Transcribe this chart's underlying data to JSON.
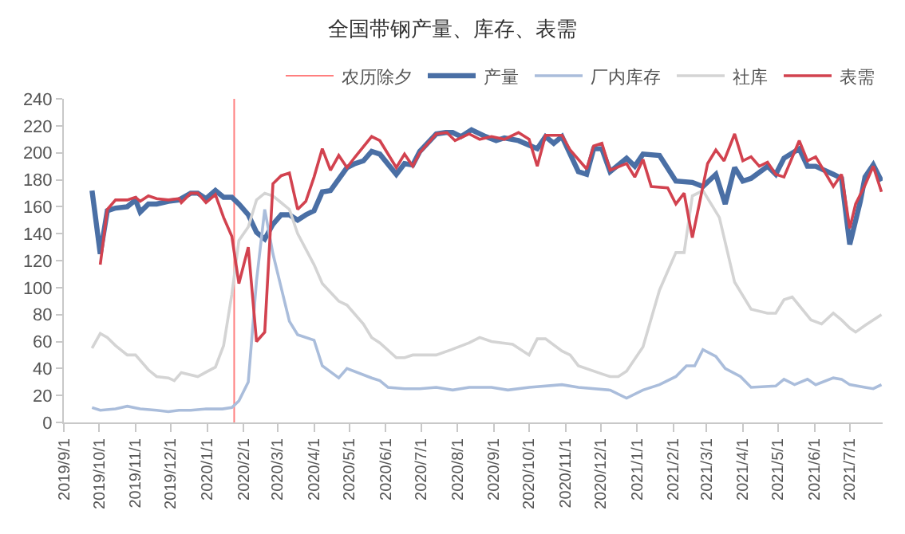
{
  "chart_data": {
    "type": "line",
    "title": "全国带钢产量、库存、表需",
    "xlim": [
      "2019-09-01",
      "2021-07-29"
    ],
    "xticks": [
      {
        "value": "2019-09-01",
        "label": "2019/9/1"
      },
      {
        "value": "2019-10-01",
        "label": "2019/10/1"
      },
      {
        "value": "2019-11-01",
        "label": "2019/11/1"
      },
      {
        "value": "2019-12-01",
        "label": "2019/12/1"
      },
      {
        "value": "2020-01-01",
        "label": "2020/1/1"
      },
      {
        "value": "2020-02-01",
        "label": "2020/2/1"
      },
      {
        "value": "2020-03-01",
        "label": "2020/3/1"
      },
      {
        "value": "2020-04-01",
        "label": "2020/4/1"
      },
      {
        "value": "2020-05-01",
        "label": "2020/5/1"
      },
      {
        "value": "2020-06-01",
        "label": "2020/6/1"
      },
      {
        "value": "2020-07-01",
        "label": "2020/7/1"
      },
      {
        "value": "2020-08-01",
        "label": "2020/8/1"
      },
      {
        "value": "2020-09-01",
        "label": "2020/9/1"
      },
      {
        "value": "2020-10-01",
        "label": "2020/10/1"
      },
      {
        "value": "2020-11-01",
        "label": "2020/11/1"
      },
      {
        "value": "2020-12-01",
        "label": "2020/12/1"
      },
      {
        "value": "2021-01-01",
        "label": "2021/1/1"
      },
      {
        "value": "2021-02-01",
        "label": "2021/2/1"
      },
      {
        "value": "2021-03-01",
        "label": "2021/3/1"
      },
      {
        "value": "2021-04-01",
        "label": "2021/4/1"
      },
      {
        "value": "2021-05-01",
        "label": "2021/5/1"
      },
      {
        "value": "2021-06-01",
        "label": "2021/6/1"
      },
      {
        "value": "2021-07-01",
        "label": "2021/7/1"
      }
    ],
    "ylim": [
      0,
      240
    ],
    "yticks": [
      0,
      20,
      40,
      60,
      80,
      100,
      120,
      140,
      160,
      180,
      200,
      220,
      240
    ],
    "grid": false,
    "legend": "top",
    "marker": "none",
    "line_style": "solid",
    "ref_lines": [
      {
        "axis": "x",
        "value": "2020-01-24",
        "label": "农历除夕",
        "color": "#ff7f7f"
      }
    ],
    "series": [
      {
        "name": "产量",
        "color": "#4a6fa5",
        "x": [
          "2019-09-25",
          "2019-10-02",
          "2019-10-08",
          "2019-10-15",
          "2019-10-25",
          "2019-11-01",
          "2019-11-05",
          "2019-11-12",
          "2019-11-19",
          "2019-11-29",
          "2019-12-08",
          "2019-12-18",
          "2019-12-24",
          "2019-12-31",
          "2020-01-08",
          "2020-01-15",
          "2020-01-22",
          "2020-01-28",
          "2020-02-05",
          "2020-02-12",
          "2020-02-19",
          "2020-02-26",
          "2020-03-04",
          "2020-03-11",
          "2020-03-18",
          "2020-03-25",
          "2020-04-01",
          "2020-04-08",
          "2020-04-15",
          "2020-04-29",
          "2020-05-06",
          "2020-05-13",
          "2020-05-20",
          "2020-05-27",
          "2020-06-10",
          "2020-06-17",
          "2020-06-24",
          "2020-06-30",
          "2020-07-14",
          "2020-07-22",
          "2020-07-28",
          "2020-08-04",
          "2020-08-13",
          "2020-08-25",
          "2020-09-03",
          "2020-09-10",
          "2020-09-22",
          "2020-10-08",
          "2020-10-15",
          "2020-10-22",
          "2020-10-29",
          "2020-11-12",
          "2020-11-19",
          "2020-11-25",
          "2020-12-02",
          "2020-12-09",
          "2020-12-23",
          "2020-12-30",
          "2021-01-06",
          "2021-01-20",
          "2021-02-03",
          "2021-02-17",
          "2021-02-26",
          "2021-03-09",
          "2021-03-17",
          "2021-03-25",
          "2021-04-01",
          "2021-04-08",
          "2021-04-22",
          "2021-04-29",
          "2021-05-06",
          "2021-05-19",
          "2021-05-26",
          "2021-06-02",
          "2021-06-17",
          "2021-06-24",
          "2021-07-01",
          "2021-07-10",
          "2021-07-14",
          "2021-07-21",
          "2021-07-28"
        ],
        "values": [
          172,
          125,
          157,
          159,
          160,
          165,
          156,
          162,
          162,
          164,
          165,
          170,
          170,
          166,
          172,
          167,
          167,
          162,
          154,
          141,
          136,
          147,
          154,
          154,
          150,
          154,
          157,
          171,
          172,
          189,
          192,
          194,
          201,
          199,
          184,
          192,
          191,
          201,
          214,
          215,
          215,
          212,
          217,
          212,
          209,
          211,
          209,
          203,
          212,
          207,
          212,
          186,
          184,
          203,
          203,
          186,
          196,
          190,
          199,
          198,
          179,
          178,
          175,
          184,
          162,
          189,
          179,
          181,
          190,
          184,
          196,
          203,
          190,
          190,
          184,
          181,
          132,
          164,
          182,
          191,
          179
        ]
      },
      {
        "name": "厂内库存",
        "color": "#aabddb",
        "x": [
          "2019-09-25",
          "2019-10-02",
          "2019-10-15",
          "2019-10-25",
          "2019-11-05",
          "2019-11-19",
          "2019-11-29",
          "2019-12-08",
          "2019-12-18",
          "2019-12-31",
          "2020-01-14",
          "2020-01-22",
          "2020-01-28",
          "2020-02-05",
          "2020-02-12",
          "2020-02-19",
          "2020-02-26",
          "2020-03-04",
          "2020-03-11",
          "2020-03-18",
          "2020-04-01",
          "2020-04-08",
          "2020-04-22",
          "2020-04-29",
          "2020-05-20",
          "2020-05-27",
          "2020-06-03",
          "2020-06-17",
          "2020-06-30",
          "2020-07-14",
          "2020-07-28",
          "2020-08-11",
          "2020-08-30",
          "2020-09-13",
          "2020-10-01",
          "2020-10-29",
          "2020-11-12",
          "2020-12-09",
          "2020-12-23",
          "2021-01-06",
          "2021-01-20",
          "2021-02-03",
          "2021-02-12",
          "2021-02-19",
          "2021-02-26",
          "2021-03-09",
          "2021-03-17",
          "2021-03-30",
          "2021-04-08",
          "2021-04-29",
          "2021-05-06",
          "2021-05-15",
          "2021-05-26",
          "2021-06-02",
          "2021-06-17",
          "2021-06-24",
          "2021-07-01",
          "2021-07-14",
          "2021-07-21",
          "2021-07-28"
        ],
        "values": [
          11,
          9,
          10,
          12,
          10,
          9,
          8,
          9,
          9,
          10,
          10,
          11,
          16,
          30,
          105,
          158,
          125,
          100,
          75,
          65,
          61,
          42,
          33,
          40,
          33,
          31,
          26,
          25,
          25,
          26,
          24,
          26,
          26,
          24,
          26,
          28,
          26,
          24,
          18,
          24,
          28,
          34,
          42,
          42,
          54,
          49,
          40,
          34,
          26,
          27,
          32,
          28,
          32,
          28,
          33,
          32,
          28,
          26,
          25,
          28
        ]
      },
      {
        "name": "社库",
        "color": "#d4d4d4",
        "x": [
          "2019-09-25",
          "2019-10-02",
          "2019-10-08",
          "2019-10-15",
          "2019-10-25",
          "2019-11-01",
          "2019-11-12",
          "2019-11-19",
          "2019-11-29",
          "2019-12-04",
          "2019-12-10",
          "2019-12-24",
          "2020-01-08",
          "2020-01-15",
          "2020-01-22",
          "2020-01-28",
          "2020-02-05",
          "2020-02-12",
          "2020-02-19",
          "2020-02-26",
          "2020-03-04",
          "2020-03-11",
          "2020-03-18",
          "2020-04-01",
          "2020-04-08",
          "2020-04-22",
          "2020-04-29",
          "2020-05-13",
          "2020-05-20",
          "2020-05-27",
          "2020-06-10",
          "2020-06-17",
          "2020-06-24",
          "2020-07-14",
          "2020-07-27",
          "2020-08-11",
          "2020-08-20",
          "2020-08-30",
          "2020-09-17",
          "2020-10-01",
          "2020-10-08",
          "2020-10-15",
          "2020-10-29",
          "2020-11-05",
          "2020-11-12",
          "2020-12-02",
          "2020-12-09",
          "2020-12-16",
          "2020-12-23",
          "2021-01-06",
          "2021-01-20",
          "2021-02-03",
          "2021-02-10",
          "2021-02-17",
          "2021-02-26",
          "2021-03-12",
          "2021-03-25",
          "2021-04-08",
          "2021-04-22",
          "2021-04-29",
          "2021-05-06",
          "2021-05-13",
          "2021-05-29",
          "2021-06-07",
          "2021-06-17",
          "2021-06-24",
          "2021-07-01",
          "2021-07-06",
          "2021-07-14",
          "2021-07-28"
        ],
        "values": [
          55,
          66,
          63,
          57,
          50,
          50,
          39,
          34,
          33,
          31,
          37,
          34,
          41,
          57,
          95,
          135,
          145,
          165,
          170,
          168,
          163,
          158,
          140,
          117,
          103,
          90,
          87,
          73,
          63,
          59,
          48,
          48,
          50,
          50,
          54,
          59,
          63,
          60,
          58,
          50,
          62,
          62,
          53,
          50,
          42,
          36,
          34,
          34,
          38,
          56,
          98,
          126,
          126,
          168,
          172,
          152,
          104,
          84,
          81,
          81,
          91,
          93,
          76,
          73,
          81,
          76,
          70,
          67,
          72,
          80
        ]
      },
      {
        "name": "表需",
        "color": "#d2424f",
        "x": [
          "2019-10-02",
          "2019-10-08",
          "2019-10-15",
          "2019-10-25",
          "2019-11-01",
          "2019-11-05",
          "2019-11-12",
          "2019-11-19",
          "2019-11-29",
          "2019-12-08",
          "2019-12-10",
          "2019-12-18",
          "2019-12-24",
          "2019-12-31",
          "2020-01-08",
          "2020-01-15",
          "2020-01-22",
          "2020-01-28",
          "2020-02-05",
          "2020-02-12",
          "2020-02-19",
          "2020-02-26",
          "2020-03-04",
          "2020-03-11",
          "2020-03-18",
          "2020-03-25",
          "2020-04-01",
          "2020-04-08",
          "2020-04-15",
          "2020-04-22",
          "2020-04-29",
          "2020-05-06",
          "2020-05-20",
          "2020-05-27",
          "2020-06-10",
          "2020-06-17",
          "2020-06-24",
          "2020-06-30",
          "2020-07-14",
          "2020-07-23",
          "2020-07-30",
          "2020-08-11",
          "2020-08-20",
          "2020-08-30",
          "2020-09-10",
          "2020-09-22",
          "2020-10-01",
          "2020-10-08",
          "2020-10-15",
          "2020-10-29",
          "2020-11-05",
          "2020-11-19",
          "2020-11-25",
          "2020-12-02",
          "2020-12-09",
          "2020-12-23",
          "2020-12-30",
          "2021-01-06",
          "2021-01-13",
          "2021-01-27",
          "2021-02-03",
          "2021-02-10",
          "2021-02-17",
          "2021-03-02",
          "2021-03-09",
          "2021-03-16",
          "2021-03-25",
          "2021-04-01",
          "2021-04-08",
          "2021-04-15",
          "2021-04-22",
          "2021-04-29",
          "2021-05-06",
          "2021-05-19",
          "2021-05-26",
          "2021-06-02",
          "2021-06-17",
          "2021-06-24",
          "2021-07-01",
          "2021-07-06",
          "2021-07-14",
          "2021-07-21",
          "2021-07-28"
        ],
        "values": [
          117,
          158,
          165,
          165,
          167,
          164,
          168,
          166,
          165,
          166,
          163,
          170,
          170,
          163,
          169,
          152,
          138,
          103,
          130,
          60,
          67,
          177,
          183,
          185,
          158,
          164,
          182,
          203,
          187,
          198,
          189,
          197,
          212,
          209,
          189,
          199,
          190,
          200,
          214,
          215,
          209,
          214,
          210,
          212,
          210,
          215,
          210,
          190,
          213,
          213,
          202,
          188,
          205,
          207,
          187,
          192,
          182,
          195,
          175,
          174,
          162,
          170,
          137,
          192,
          202,
          194,
          214,
          194,
          197,
          190,
          193,
          184,
          182,
          209,
          194,
          197,
          175,
          184,
          144,
          162,
          176,
          190,
          171
        ]
      }
    ]
  }
}
